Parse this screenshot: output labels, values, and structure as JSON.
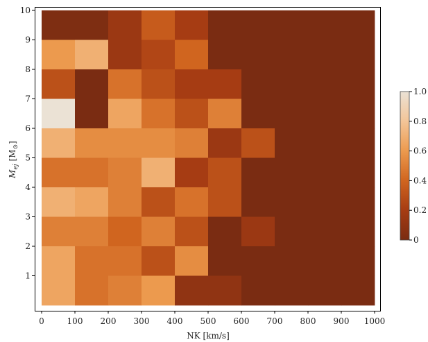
{
  "chart_data": {
    "type": "heatmap",
    "title": "",
    "xlabel": "NK [km/s]",
    "ylabel_main": "M",
    "ylabel_sub": "ej",
    "ylabel_unit_open": "[M",
    "ylabel_unit_sub": "⊙",
    "ylabel_unit_close": "]",
    "x_edges": [
      0,
      100,
      200,
      300,
      400,
      500,
      600,
      700,
      800,
      900,
      1000
    ],
    "y_edges": [
      0,
      1,
      2,
      3,
      4,
      5,
      6,
      7,
      8,
      9,
      10
    ],
    "xlim": [
      0,
      1000
    ],
    "ylim": [
      0,
      10
    ],
    "x_ticks": [
      0,
      100,
      200,
      300,
      400,
      500,
      600,
      700,
      800,
      900,
      1000
    ],
    "y_ticks": [
      1,
      2,
      3,
      4,
      5,
      6,
      7,
      8,
      9,
      10
    ],
    "zlim": [
      0,
      1
    ],
    "colorbar_ticks": [
      "0",
      "0.2",
      "0.4",
      "0.6",
      "0.8",
      "1.0"
    ],
    "colormap": [
      "#7a2c12",
      "#a63c13",
      "#d0651f",
      "#ec9a4e",
      "#f3c598",
      "#ebe2d5"
    ],
    "values_rows_top_to_bottom": [
      [
        0.02,
        0.02,
        0.15,
        0.35,
        0.2,
        0.0,
        0.0,
        0.0,
        0.0,
        0.0
      ],
      [
        0.6,
        0.7,
        0.15,
        0.25,
        0.4,
        0.0,
        0.0,
        0.0,
        0.0,
        0.0
      ],
      [
        0.3,
        0.0,
        0.45,
        0.3,
        0.2,
        0.2,
        0.0,
        0.0,
        0.0,
        0.0
      ],
      [
        1.0,
        0.0,
        0.65,
        0.45,
        0.3,
        0.5,
        0.0,
        0.0,
        0.0,
        0.0
      ],
      [
        0.7,
        0.55,
        0.55,
        0.55,
        0.5,
        0.15,
        0.3,
        0.0,
        0.0,
        0.0
      ],
      [
        0.45,
        0.45,
        0.5,
        0.7,
        0.2,
        0.3,
        0.0,
        0.0,
        0.0,
        0.0
      ],
      [
        0.7,
        0.65,
        0.5,
        0.3,
        0.45,
        0.3,
        0.0,
        0.0,
        0.0,
        0.0
      ],
      [
        0.5,
        0.5,
        0.4,
        0.5,
        0.3,
        0.0,
        0.15,
        0.0,
        0.0,
        0.0
      ],
      [
        0.65,
        0.45,
        0.45,
        0.3,
        0.55,
        0.0,
        0.0,
        0.0,
        0.0,
        0.0
      ],
      [
        0.65,
        0.45,
        0.5,
        0.6,
        0.1,
        0.1,
        0.0,
        0.0,
        0.0,
        0.0
      ]
    ]
  }
}
